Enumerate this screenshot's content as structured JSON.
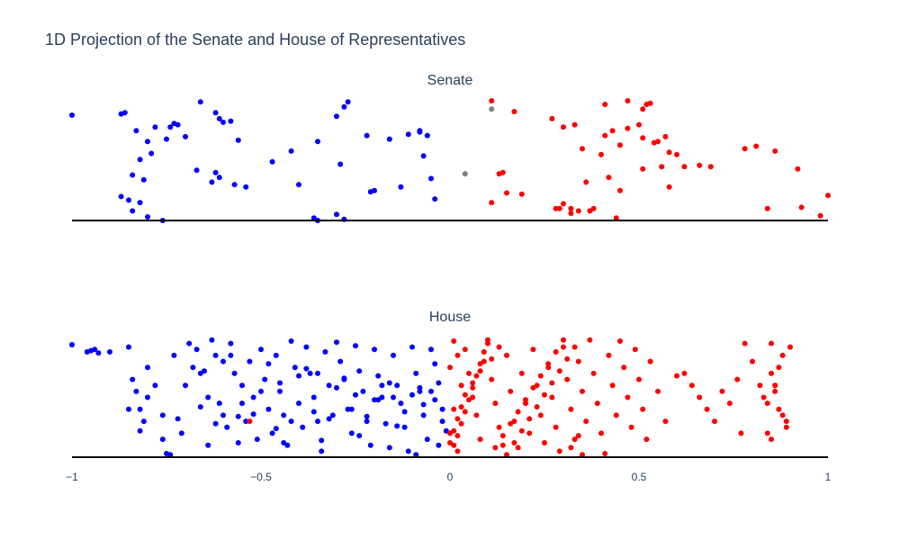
{
  "title": "1D Projection of the Senate and House of Representatives",
  "colors": {
    "democrat": "#0000ff",
    "republican": "#ff0000",
    "independent": "#808080",
    "axis": "#000000",
    "text": "#2a3f5f"
  },
  "chart_data": [
    {
      "type": "scatter",
      "title": "Senate",
      "xlim": [
        -1,
        1
      ],
      "ylim": [
        0,
        1
      ],
      "grid": false,
      "series": [
        {
          "color": "#0000ff",
          "x": [
            -1.0,
            -0.87,
            -0.86,
            -0.83,
            -0.82,
            -0.85,
            -0.84,
            -0.81,
            -0.8,
            -0.79,
            -0.78,
            -0.75,
            -0.73,
            -0.72,
            -0.7,
            -0.66,
            -0.62,
            -0.61,
            -0.6,
            -0.58,
            -0.57,
            -0.54,
            -0.61,
            -0.47,
            -0.35,
            -0.4,
            -0.36,
            -0.3,
            -0.28,
            -0.27,
            -0.29,
            -0.2,
            -0.21,
            -0.16,
            -0.11,
            -0.08,
            -0.06,
            -0.07,
            -0.05,
            -0.04,
            -0.84,
            -0.82,
            -0.8,
            -0.67,
            -0.3,
            -0.76,
            -0.42,
            -0.35,
            -0.22,
            -0.28,
            -0.08,
            -0.13,
            -0.87,
            -0.63,
            -0.56,
            -0.62,
            -0.74
          ],
          "y": [
            0.88,
            0.89,
            0.9,
            0.75,
            0.51,
            0.17,
            0.38,
            0.34,
            0.66,
            0.56,
            0.78,
            0.68,
            0.81,
            0.8,
            0.7,
            0.99,
            0.9,
            0.85,
            0.82,
            0.83,
            0.3,
            0.28,
            0.36,
            0.49,
            0.66,
            0.3,
            0.02,
            0.87,
            0.95,
            0.99,
            0.47,
            0.25,
            0.24,
            0.68,
            0.72,
            0.74,
            0.71,
            0.54,
            0.35,
            0.18,
            0.08,
            0.15,
            0.03,
            0.42,
            0.05,
            0.0,
            0.58,
            0.0,
            0.71,
            0.01,
            0.75,
            0.28,
            0.2,
            0.32,
            0.67,
            0.4,
            0.78
          ]
        },
        {
          "color": "#ff0000",
          "x": [
            0.11,
            0.17,
            0.14,
            0.11,
            0.13,
            0.15,
            0.19,
            0.28,
            0.29,
            0.3,
            0.32,
            0.33,
            0.34,
            0.36,
            0.38,
            0.4,
            0.41,
            0.42,
            0.43,
            0.44,
            0.47,
            0.5,
            0.51,
            0.53,
            0.54,
            0.55,
            0.56,
            0.58,
            0.6,
            0.62,
            0.66,
            0.69,
            0.78,
            0.81,
            0.84,
            0.86,
            0.92,
            0.93,
            0.98,
            1.0,
            0.47,
            0.51,
            0.51,
            0.52,
            0.57,
            0.58,
            0.45,
            0.35,
            0.32,
            0.37,
            0.45,
            0.3,
            0.41,
            0.27
          ],
          "y": [
            1.0,
            0.91,
            0.4,
            0.15,
            0.39,
            0.23,
            0.22,
            0.1,
            0.1,
            0.14,
            0.1,
            0.8,
            0.08,
            0.32,
            0.1,
            0.55,
            0.97,
            0.36,
            0.75,
            0.02,
            1.0,
            0.8,
            0.43,
            0.98,
            0.65,
            0.66,
            0.45,
            0.57,
            0.55,
            0.45,
            0.46,
            0.45,
            0.6,
            0.62,
            0.1,
            0.58,
            0.43,
            0.11,
            0.04,
            0.21,
            0.77,
            0.69,
            0.93,
            0.97,
            0.7,
            0.28,
            0.63,
            0.6,
            0.06,
            0.08,
            0.25,
            0.78,
            0.71,
            0.85
          ]
        },
        {
          "color": "#808080",
          "x": [
            0.04,
            0.11
          ],
          "y": [
            0.39,
            0.93
          ]
        }
      ]
    },
    {
      "type": "scatter",
      "title": "House",
      "xlim": [
        -1,
        1
      ],
      "ylim": [
        0,
        1
      ],
      "grid": false,
      "xticks": [
        -1,
        -0.5,
        0,
        0.5,
        1
      ],
      "xtick_labels": [
        "−1",
        "−0.5",
        "0",
        "0.5",
        "1"
      ],
      "series": [
        {
          "color": "#0000ff",
          "x": [
            -1.0,
            -0.96,
            -0.95,
            -0.94,
            -0.93,
            -0.9,
            -0.85,
            -0.84,
            -0.83,
            -0.82,
            -0.81,
            -0.8,
            -0.78,
            -0.76,
            -0.75,
            -0.74,
            -0.73,
            -0.71,
            -0.69,
            -0.68,
            -0.67,
            -0.66,
            -0.64,
            -0.63,
            -0.62,
            -0.61,
            -0.6,
            -0.59,
            -0.58,
            -0.57,
            -0.56,
            -0.55,
            -0.54,
            -0.53,
            -0.52,
            -0.51,
            -0.5,
            -0.49,
            -0.48,
            -0.47,
            -0.46,
            -0.45,
            -0.44,
            -0.43,
            -0.42,
            -0.41,
            -0.4,
            -0.39,
            -0.38,
            -0.37,
            -0.36,
            -0.35,
            -0.34,
            -0.33,
            -0.32,
            -0.31,
            -0.3,
            -0.29,
            -0.28,
            -0.27,
            -0.26,
            -0.25,
            -0.24,
            -0.23,
            -0.22,
            -0.21,
            -0.2,
            -0.19,
            -0.18,
            -0.17,
            -0.16,
            -0.15,
            -0.14,
            -0.13,
            -0.12,
            -0.11,
            -0.1,
            -0.09,
            -0.08,
            -0.07,
            -0.06,
            -0.05,
            -0.04,
            -0.03,
            -0.02,
            -0.01,
            -0.85,
            -0.8,
            -0.76,
            -0.7,
            -0.65,
            -0.6,
            -0.55,
            -0.5,
            -0.45,
            -0.4,
            -0.35,
            -0.3,
            -0.25,
            -0.2,
            -0.15,
            -0.1,
            -0.05,
            -0.02,
            -0.82,
            -0.72,
            -0.62,
            -0.52,
            -0.42,
            -0.32,
            -0.22,
            -0.12,
            -0.07,
            -0.03,
            -0.58,
            -0.48,
            -0.38,
            -0.28,
            -0.18,
            -0.08,
            -0.04,
            -0.64,
            -0.44,
            -0.34,
            -0.24,
            -0.14,
            -0.09,
            -0.16,
            -0.19,
            -0.26,
            -0.36,
            -0.46,
            -0.56,
            -0.66
          ],
          "y": [
            0.94,
            0.88,
            0.89,
            0.9,
            0.87,
            0.88,
            0.92,
            0.65,
            0.55,
            0.4,
            0.3,
            0.75,
            0.6,
            0.15,
            0.03,
            0.02,
            0.85,
            0.2,
            0.95,
            0.75,
            0.9,
            0.7,
            0.5,
            0.98,
            0.85,
            0.45,
            0.35,
            0.25,
            0.95,
            0.7,
            0.12,
            0.6,
            0.3,
            0.8,
            0.5,
            0.15,
            0.9,
            0.65,
            0.4,
            0.2,
            0.85,
            0.55,
            0.35,
            0.1,
            0.97,
            0.75,
            0.45,
            0.25,
            0.92,
            0.7,
            0.5,
            0.3,
            0.05,
            0.88,
            0.6,
            0.35,
            0.96,
            0.8,
            0.65,
            0.4,
            0.2,
            0.93,
            0.72,
            0.55,
            0.3,
            0.1,
            0.9,
            0.68,
            0.5,
            0.28,
            0.08,
            0.85,
            0.6,
            0.45,
            0.25,
            0.05,
            0.92,
            0.7,
            0.55,
            0.35,
            0.15,
            0.9,
            0.78,
            0.62,
            0.4,
            0.22,
            0.4,
            0.5,
            0.35,
            0.6,
            0.72,
            0.8,
            0.45,
            0.55,
            0.62,
            0.68,
            0.7,
            0.58,
            0.52,
            0.48,
            0.5,
            0.52,
            0.55,
            0.3,
            0.22,
            0.32,
            0.28,
            0.36,
            0.3,
            0.32,
            0.34,
            0.38,
            0.44,
            0.1,
            0.85,
            0.78,
            0.74,
            0.66,
            0.6,
            0.58,
            0.48,
            0.1,
            0.12,
            0.14,
            0.18,
            0.26,
            0.02,
            0.62,
            0.48,
            0.4,
            0.38,
            0.24,
            0.34,
            0.42
          ]
        },
        {
          "color": "#ff0000",
          "x": [
            -0.53,
            0.0,
            0.01,
            0.02,
            0.03,
            0.01,
            0.0,
            0.02,
            0.04,
            0.05,
            0.06,
            0.07,
            0.08,
            0.09,
            0.1,
            0.11,
            0.12,
            0.13,
            0.14,
            0.15,
            0.16,
            0.17,
            0.18,
            0.19,
            0.2,
            0.21,
            0.22,
            0.23,
            0.24,
            0.25,
            0.26,
            0.27,
            0.28,
            0.29,
            0.3,
            0.31,
            0.32,
            0.33,
            0.34,
            0.35,
            0.36,
            0.37,
            0.38,
            0.39,
            0.4,
            0.41,
            0.42,
            0.43,
            0.44,
            0.45,
            0.46,
            0.47,
            0.48,
            0.49,
            0.5,
            0.51,
            0.52,
            0.53,
            0.55,
            0.57,
            0.6,
            0.62,
            0.64,
            0.66,
            0.68,
            0.7,
            0.72,
            0.74,
            0.76,
            0.77,
            0.78,
            0.8,
            0.82,
            0.83,
            0.84,
            0.85,
            0.86,
            0.87,
            0.88,
            0.89,
            0.9,
            0.01,
            0.02,
            0.03,
            0.04,
            0.05,
            0.06,
            0.07,
            0.08,
            0.09,
            0.1,
            0.12,
            0.14,
            0.16,
            0.18,
            0.2,
            0.22,
            0.24,
            0.26,
            0.28,
            0.3,
            0.32,
            0.34,
            0.0,
            0.01,
            0.02,
            0.03,
            0.04,
            0.06,
            0.08,
            0.11,
            0.13,
            0.15,
            0.17,
            0.19,
            0.21,
            0.23,
            0.25,
            0.27,
            0.29,
            0.31,
            0.33,
            0.35,
            0.85,
            0.86,
            0.87,
            0.84,
            0.88,
            0.89,
            0.85,
            0.86
          ],
          "y": [
            0.3,
            0.75,
            0.97,
            0.85,
            0.6,
            0.4,
            0.2,
            0.05,
            0.9,
            0.7,
            0.5,
            0.35,
            0.15,
            0.8,
            0.95,
            0.65,
            0.45,
            0.25,
            0.1,
            0.85,
            0.55,
            0.3,
            0.08,
            0.7,
            0.45,
            0.2,
            0.9,
            0.6,
            0.35,
            0.12,
            0.75,
            0.5,
            0.25,
            0.05,
            0.92,
            0.65,
            0.4,
            0.15,
            0.8,
            0.55,
            0.3,
            0.98,
            0.7,
            0.45,
            0.2,
            0.03,
            0.85,
            0.6,
            0.35,
            0.97,
            0.75,
            0.5,
            0.25,
            0.9,
            0.65,
            0.4,
            0.15,
            0.8,
            0.55,
            0.3,
            0.68,
            0.7,
            0.6,
            0.5,
            0.4,
            0.3,
            0.55,
            0.45,
            0.65,
            0.2,
            0.95,
            0.8,
            0.6,
            0.5,
            0.45,
            0.7,
            0.6,
            0.75,
            0.35,
            0.25,
            0.92,
            0.1,
            0.18,
            0.28,
            0.38,
            0.48,
            0.58,
            0.68,
            0.78,
            0.88,
            0.98,
            0.08,
            0.18,
            0.28,
            0.38,
            0.48,
            0.58,
            0.68,
            0.78,
            0.88,
            0.98,
            0.08,
            0.18,
            0.12,
            0.22,
            0.32,
            0.42,
            0.52,
            0.62,
            0.72,
            0.82,
            0.92,
            0.02,
            0.12,
            0.22,
            0.32,
            0.42,
            0.52,
            0.62,
            0.72,
            0.82,
            0.92,
            0.02,
            0.95,
            0.55,
            0.4,
            0.2,
            0.85,
            0.3,
            0.15,
            0.6
          ]
        }
      ]
    }
  ]
}
